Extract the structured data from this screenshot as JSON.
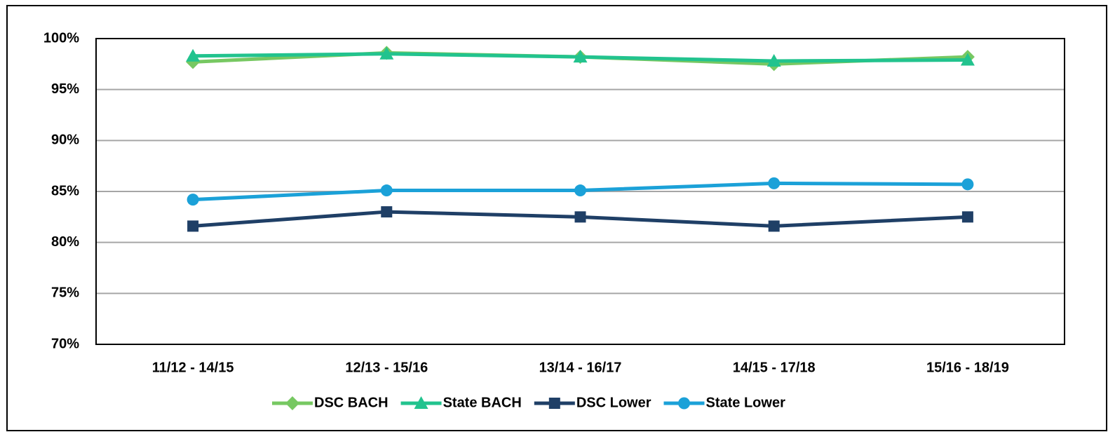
{
  "chart_data": {
    "type": "line",
    "categories": [
      "11/12 - 14/15",
      "12/13 - 15/16",
      "13/14 - 16/17",
      "14/15 - 17/18",
      "15/16 - 18/19"
    ],
    "series": [
      {
        "name": "DSC BACH",
        "color": "#77c862",
        "marker": "diamond",
        "values": [
          97.7,
          98.6,
          98.2,
          97.5,
          98.2
        ]
      },
      {
        "name": "State BACH",
        "color": "#22c38e",
        "marker": "triangle",
        "values": [
          98.3,
          98.5,
          98.2,
          97.8,
          97.9
        ]
      },
      {
        "name": "DSC Lower",
        "color": "#1f3f66",
        "marker": "square",
        "values": [
          81.6,
          83.0,
          82.5,
          81.6,
          82.5
        ]
      },
      {
        "name": "State Lower",
        "color": "#1ba1d8",
        "marker": "circle",
        "values": [
          84.2,
          85.1,
          85.1,
          85.8,
          85.7
        ]
      }
    ],
    "ylim": [
      70,
      100
    ],
    "yticks": [
      {
        "value": 70,
        "label": "70%"
      },
      {
        "value": 75,
        "label": "75%"
      },
      {
        "value": 80,
        "label": "80%"
      },
      {
        "value": 85,
        "label": "85%"
      },
      {
        "value": 90,
        "label": "90%"
      },
      {
        "value": 95,
        "label": "95%"
      },
      {
        "value": 100,
        "label": "100%"
      }
    ],
    "grid": true,
    "legend": "bottom"
  }
}
